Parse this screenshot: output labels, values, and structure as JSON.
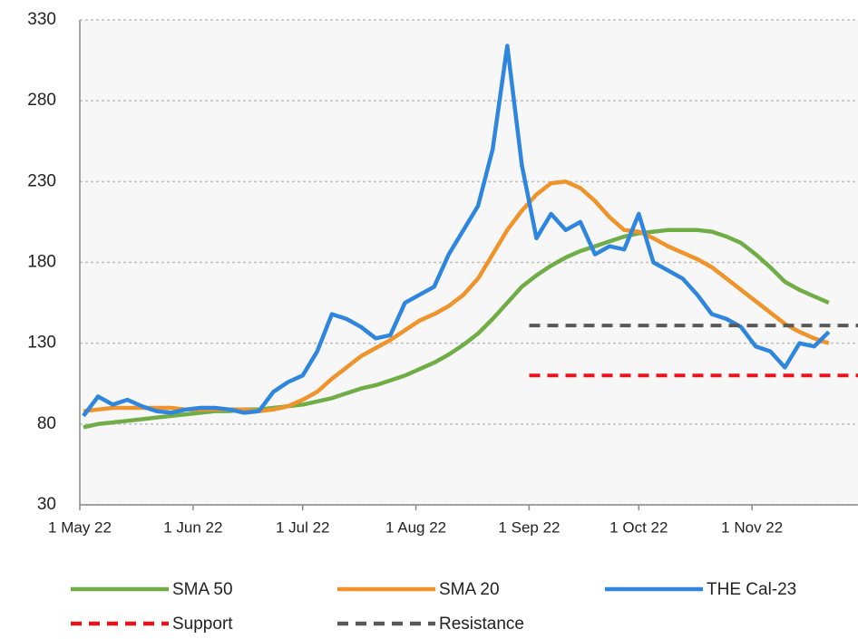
{
  "chart_data": {
    "type": "line",
    "xlim": [
      "2022-05-01",
      "2022-11-30"
    ],
    "xticks": [
      {
        "value": "2022-05-01",
        "label": "1 May 22"
      },
      {
        "value": "2022-06-01",
        "label": "1 Jun 22"
      },
      {
        "value": "2022-07-01",
        "label": "1 Jul 22"
      },
      {
        "value": "2022-08-01",
        "label": "1 Aug 22"
      },
      {
        "value": "2022-09-01",
        "label": "1 Sep 22"
      },
      {
        "value": "2022-10-01",
        "label": "1 Oct 22"
      },
      {
        "value": "2022-11-01",
        "label": "1 Nov 22"
      }
    ],
    "ylim": [
      30,
      330
    ],
    "yticks": [
      30,
      80,
      130,
      180,
      230,
      280,
      330
    ],
    "grid": true,
    "x": [
      "2022-05-02",
      "2022-05-06",
      "2022-05-10",
      "2022-05-14",
      "2022-05-18",
      "2022-05-22",
      "2022-05-26",
      "2022-05-30",
      "2022-06-03",
      "2022-06-07",
      "2022-06-11",
      "2022-06-15",
      "2022-06-19",
      "2022-06-23",
      "2022-06-27",
      "2022-07-01",
      "2022-07-05",
      "2022-07-09",
      "2022-07-13",
      "2022-07-17",
      "2022-07-21",
      "2022-07-25",
      "2022-07-29",
      "2022-08-02",
      "2022-08-06",
      "2022-08-10",
      "2022-08-14",
      "2022-08-18",
      "2022-08-22",
      "2022-08-26",
      "2022-08-30",
      "2022-09-03",
      "2022-09-07",
      "2022-09-11",
      "2022-09-15",
      "2022-09-19",
      "2022-09-23",
      "2022-09-27",
      "2022-10-01",
      "2022-10-05",
      "2022-10-09",
      "2022-10-13",
      "2022-10-17",
      "2022-10-21",
      "2022-10-25",
      "2022-10-29",
      "2022-11-02",
      "2022-11-06",
      "2022-11-10",
      "2022-11-14",
      "2022-11-18",
      "2022-11-22"
    ],
    "series": [
      {
        "name": "SMA 50",
        "color": "#70ad47",
        "dash": false,
        "values": [
          78,
          80,
          81,
          82,
          83,
          84,
          85,
          86,
          87,
          88,
          88,
          89,
          89,
          90,
          91,
          92,
          94,
          96,
          99,
          102,
          104,
          107,
          110,
          114,
          118,
          123,
          129,
          136,
          145,
          155,
          165,
          172,
          178,
          183,
          187,
          190,
          193,
          196,
          198,
          199,
          200,
          200,
          200,
          199,
          196,
          192,
          185,
          177,
          168,
          163,
          159,
          155
        ]
      },
      {
        "name": "SMA 20",
        "color": "#f0932b",
        "dash": false,
        "values": [
          88,
          89,
          90,
          90,
          90,
          90,
          90,
          89,
          89,
          89,
          89,
          89,
          88,
          89,
          91,
          95,
          100,
          108,
          115,
          122,
          127,
          132,
          138,
          144,
          148,
          153,
          160,
          170,
          185,
          200,
          212,
          222,
          229,
          230,
          226,
          218,
          208,
          200,
          199,
          195,
          190,
          186,
          182,
          177,
          170,
          163,
          156,
          149,
          142,
          137,
          133,
          130
        ]
      },
      {
        "name": "THE Cal-23",
        "color": "#2e86de",
        "dash": false,
        "values": [
          85,
          97,
          92,
          95,
          91,
          88,
          87,
          89,
          90,
          90,
          89,
          87,
          88,
          100,
          106,
          110,
          125,
          148,
          145,
          140,
          133,
          135,
          155,
          160,
          165,
          185,
          200,
          215,
          250,
          314,
          240,
          195,
          210,
          200,
          205,
          185,
          190,
          188,
          210,
          180,
          175,
          170,
          160,
          148,
          145,
          140,
          128,
          125,
          115,
          130,
          128,
          137
        ]
      },
      {
        "name": "Support",
        "color": "#e8141b",
        "dash": true,
        "x": [
          "2022-09-01",
          "2022-11-30"
        ],
        "values": [
          110,
          110
        ]
      },
      {
        "name": "Resistance",
        "color": "#595959",
        "dash": true,
        "x": [
          "2022-09-01",
          "2022-11-30"
        ],
        "values": [
          141,
          141
        ]
      }
    ]
  }
}
